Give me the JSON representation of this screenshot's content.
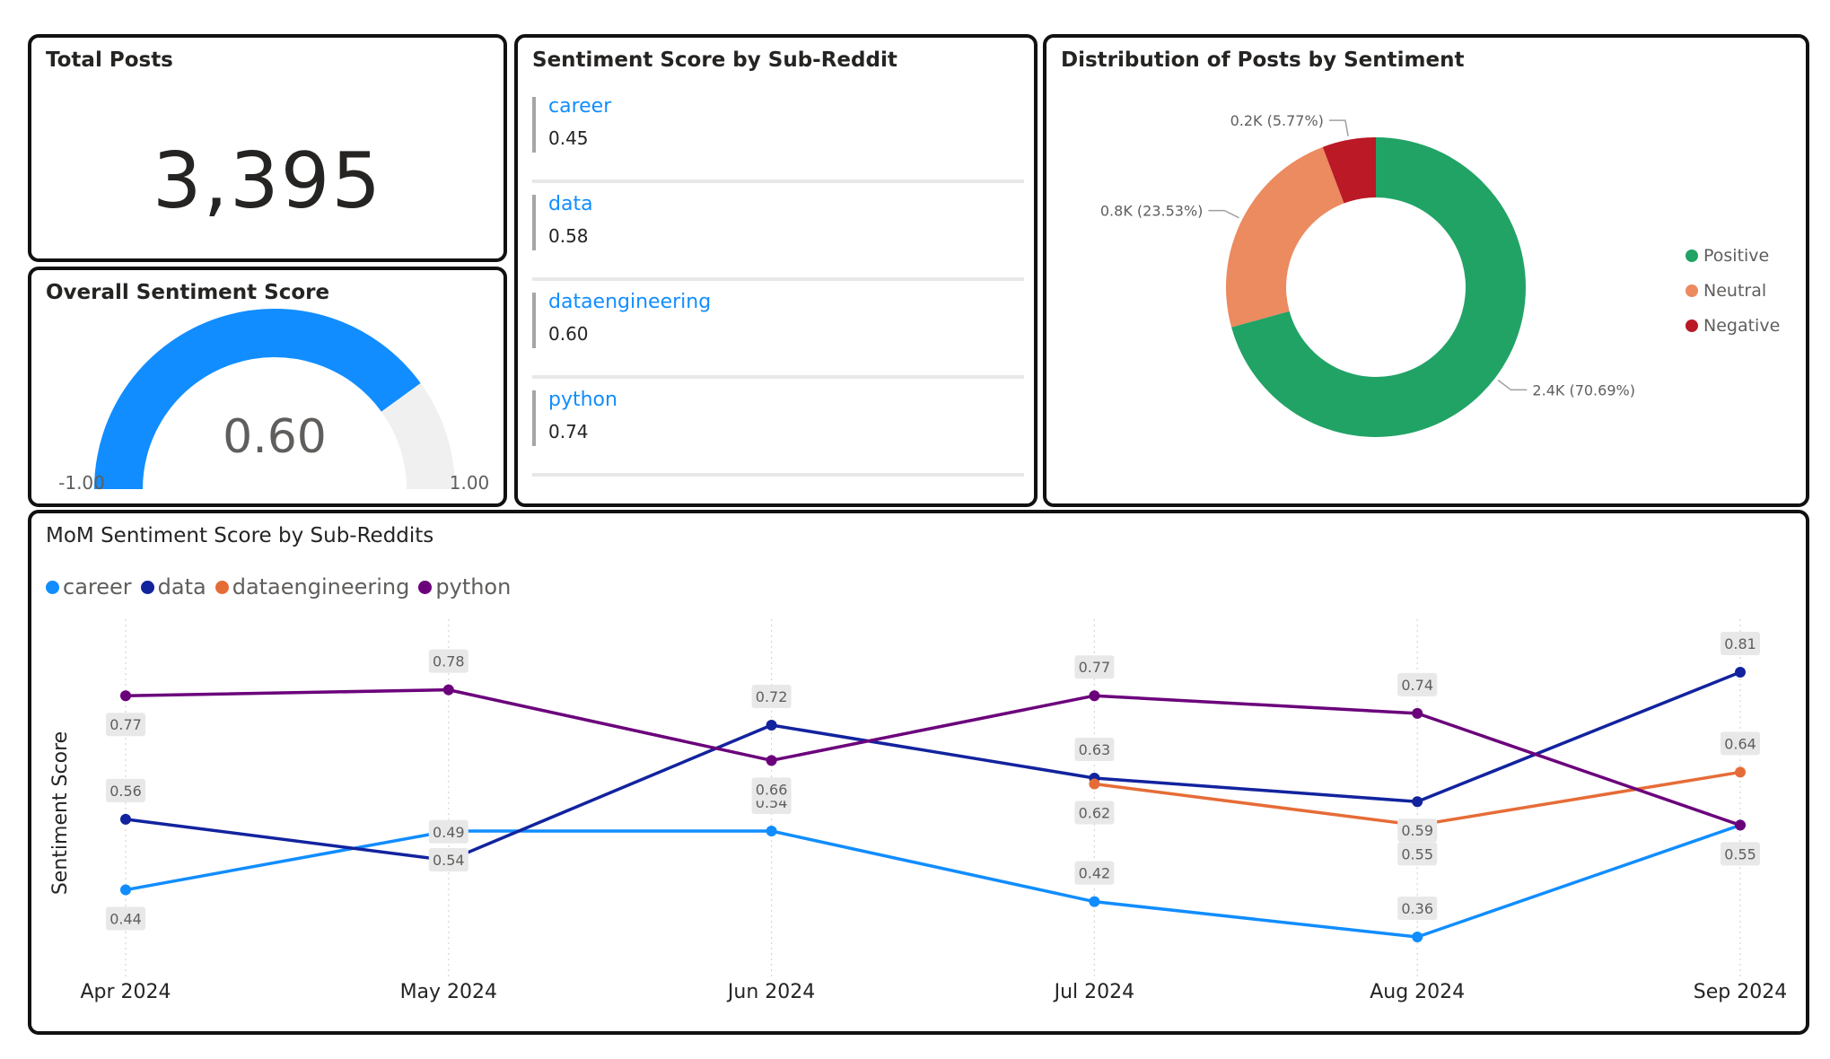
{
  "kpi": {
    "title": "Total Posts",
    "value": "3,395"
  },
  "gauge": {
    "title": "Overall Sentiment Score",
    "value": 0.6,
    "value_label": "0.60",
    "min_label": "-1.00",
    "max_label": "1.00",
    "min": -1,
    "max": 1,
    "fill_color": "#118DFF",
    "track_color": "#F0F0F0"
  },
  "subreddit_card": {
    "title": "Sentiment Score by Sub-Reddit",
    "items": [
      {
        "name": "career",
        "score": "0.45"
      },
      {
        "name": "data",
        "score": "0.58"
      },
      {
        "name": "dataengineering",
        "score": "0.60"
      },
      {
        "name": "python",
        "score": "0.74"
      }
    ]
  },
  "chart_data": [
    {
      "type": "pie",
      "title": "Distribution of Posts by Sentiment",
      "donut": true,
      "slices": [
        {
          "label": "Positive",
          "share": 70.69,
          "data_label": "2.4K (70.69%)",
          "color": "#21A366"
        },
        {
          "label": "Neutral",
          "share": 23.53,
          "data_label": "0.8K (23.53%)",
          "color": "#EC8A60"
        },
        {
          "label": "Negative",
          "share": 5.77,
          "data_label": "0.2K (5.77%)",
          "color": "#BA1925"
        }
      ],
      "legend_position": "right"
    },
    {
      "type": "line",
      "title": "MoM Sentiment Score by Sub-Reddits",
      "ylabel": "Sentiment Score",
      "xlabel": "",
      "categories": [
        "Apr 2024",
        "May 2024",
        "Jun 2024",
        "Jul 2024",
        "Aug 2024",
        "Sep 2024"
      ],
      "ylim": [
        0.3,
        0.9
      ],
      "legend_position": "top-left",
      "series": [
        {
          "name": "career",
          "color": "#118DFF",
          "values": [
            0.44,
            0.54,
            0.54,
            0.42,
            0.36,
            0.55
          ],
          "labels": [
            "0.44",
            "0.54",
            "0.54",
            "0.42",
            "0.36",
            ""
          ]
        },
        {
          "name": "data",
          "color": "#12239E",
          "values": [
            0.56,
            0.49,
            0.72,
            0.63,
            0.59,
            0.81
          ],
          "labels": [
            "0.56",
            "0.49",
            "0.72",
            "0.63",
            "0.59",
            "0.81"
          ]
        },
        {
          "name": "dataengineering",
          "color": "#E66C37",
          "values": [
            null,
            null,
            null,
            0.62,
            0.55,
            0.64
          ],
          "labels": [
            "",
            "",
            "",
            "0.62",
            "0.55",
            "0.64"
          ]
        },
        {
          "name": "python",
          "color": "#6B007B",
          "values": [
            0.77,
            0.78,
            0.66,
            0.77,
            0.74,
            0.55
          ],
          "labels": [
            "0.77",
            "0.78",
            "0.66",
            "0.77",
            "0.74",
            "0.55"
          ]
        }
      ]
    }
  ]
}
